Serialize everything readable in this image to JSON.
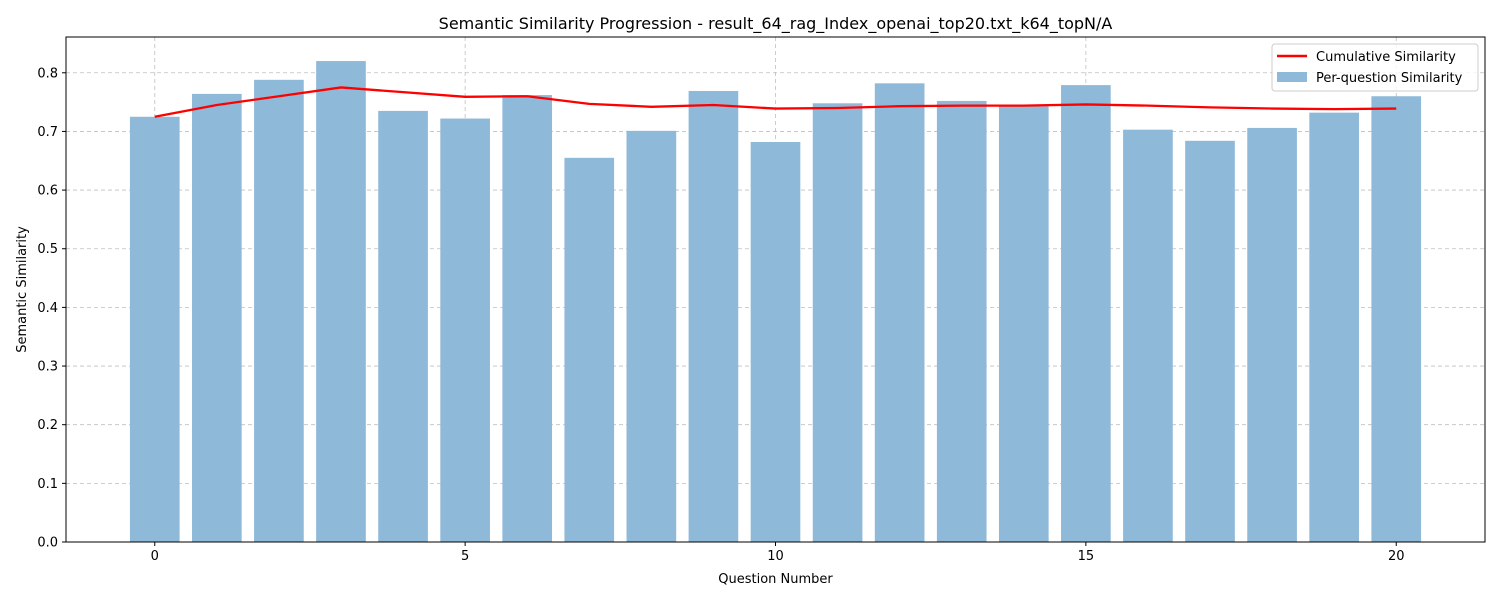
{
  "chart_data": {
    "type": "bar",
    "title": "Semantic Similarity Progression - result_64_rag_Index_openai_top20.txt_k64_topN/A",
    "xlabel": "Question Number",
    "ylabel": "Semantic Similarity",
    "xlim": [
      -1.43,
      21.43
    ],
    "ylim": [
      0,
      0.861
    ],
    "xticks": [
      0,
      5,
      10,
      15,
      20
    ],
    "yticks": [
      0.0,
      0.1,
      0.2,
      0.3,
      0.4,
      0.5,
      0.6,
      0.7,
      0.8
    ],
    "grid": true,
    "legend_placement": "top-right",
    "x": [
      0,
      1,
      2,
      3,
      4,
      5,
      6,
      7,
      8,
      9,
      10,
      11,
      12,
      13,
      14,
      15,
      16,
      17,
      18,
      19,
      20
    ],
    "series": [
      {
        "name": "Cumulative Similarity",
        "kind": "line",
        "color": "#ff0000",
        "values": [
          0.725,
          0.745,
          0.76,
          0.775,
          0.767,
          0.759,
          0.76,
          0.747,
          0.742,
          0.745,
          0.739,
          0.74,
          0.743,
          0.744,
          0.744,
          0.746,
          0.744,
          0.741,
          0.739,
          0.738,
          0.739
        ]
      },
      {
        "name": "Per-question Similarity",
        "kind": "bar",
        "color": "#8fb9d9",
        "values": [
          0.725,
          0.764,
          0.788,
          0.82,
          0.735,
          0.722,
          0.762,
          0.655,
          0.701,
          0.769,
          0.682,
          0.748,
          0.782,
          0.752,
          0.743,
          0.779,
          0.703,
          0.684,
          0.706,
          0.732,
          0.76
        ]
      }
    ]
  }
}
